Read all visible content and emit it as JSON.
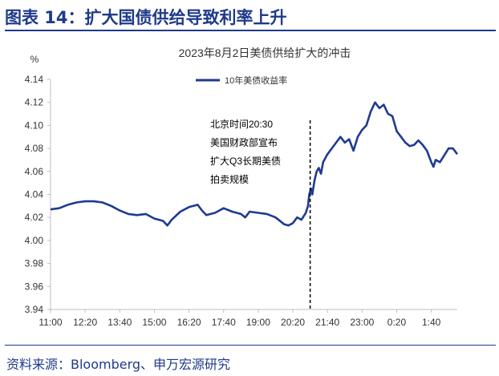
{
  "header": {
    "figure_title": "图表 14：扩大国债供给导致利率上升"
  },
  "footer": {
    "source": "资料来源：Bloomberg、申万宏源研究"
  },
  "chart_data": {
    "type": "line",
    "title": "2023年8月2日美债供给扩大的冲击",
    "ylabel": "%",
    "xlabel": "",
    "ylim": [
      3.94,
      4.14
    ],
    "yticks": [
      "4.14",
      "4.12",
      "4.10",
      "4.08",
      "4.06",
      "4.04",
      "4.02",
      "4.00",
      "3.98",
      "3.96",
      "3.94"
    ],
    "x_tick_labels": [
      "11:00",
      "12:20",
      "13:40",
      "15:00",
      "16:20",
      "17:40",
      "19:00",
      "20:20",
      "21:40",
      "23:00",
      "0:20",
      "1:40"
    ],
    "x_start_minute": 660,
    "x_tick_step_minutes": 80,
    "x_end_minute": 1600,
    "legend_position": "top-center",
    "series": [
      {
        "name": "10年美债收益率",
        "color": "#1f3a93",
        "points": [
          [
            660,
            4.027
          ],
          [
            680,
            4.028
          ],
          [
            700,
            4.031
          ],
          [
            720,
            4.033
          ],
          [
            740,
            4.034
          ],
          [
            760,
            4.034
          ],
          [
            780,
            4.033
          ],
          [
            800,
            4.03
          ],
          [
            820,
            4.026
          ],
          [
            840,
            4.023
          ],
          [
            860,
            4.022
          ],
          [
            880,
            4.023
          ],
          [
            900,
            4.019
          ],
          [
            920,
            4.017
          ],
          [
            930,
            4.013
          ],
          [
            940,
            4.018
          ],
          [
            960,
            4.025
          ],
          [
            980,
            4.029
          ],
          [
            1000,
            4.031
          ],
          [
            1010,
            4.026
          ],
          [
            1020,
            4.022
          ],
          [
            1040,
            4.024
          ],
          [
            1060,
            4.028
          ],
          [
            1080,
            4.025
          ],
          [
            1100,
            4.023
          ],
          [
            1110,
            4.02
          ],
          [
            1120,
            4.025
          ],
          [
            1140,
            4.024
          ],
          [
            1160,
            4.023
          ],
          [
            1180,
            4.02
          ],
          [
            1200,
            4.014
          ],
          [
            1210,
            4.013
          ],
          [
            1220,
            4.015
          ],
          [
            1230,
            4.02
          ],
          [
            1240,
            4.018
          ],
          [
            1250,
            4.024
          ],
          [
            1255,
            4.03
          ],
          [
            1258,
            4.04
          ],
          [
            1262,
            4.045
          ],
          [
            1265,
            4.04
          ],
          [
            1270,
            4.052
          ],
          [
            1275,
            4.06
          ],
          [
            1280,
            4.063
          ],
          [
            1285,
            4.058
          ],
          [
            1290,
            4.068
          ],
          [
            1300,
            4.075
          ],
          [
            1310,
            4.08
          ],
          [
            1320,
            4.085
          ],
          [
            1330,
            4.09
          ],
          [
            1340,
            4.085
          ],
          [
            1350,
            4.088
          ],
          [
            1360,
            4.078
          ],
          [
            1370,
            4.09
          ],
          [
            1380,
            4.096
          ],
          [
            1390,
            4.1
          ],
          [
            1400,
            4.112
          ],
          [
            1410,
            4.12
          ],
          [
            1420,
            4.115
          ],
          [
            1430,
            4.118
          ],
          [
            1440,
            4.11
          ],
          [
            1450,
            4.108
          ],
          [
            1460,
            4.095
          ],
          [
            1470,
            4.09
          ],
          [
            1480,
            4.085
          ],
          [
            1490,
            4.082
          ],
          [
            1500,
            4.083
          ],
          [
            1510,
            4.087
          ],
          [
            1520,
            4.083
          ],
          [
            1530,
            4.078
          ],
          [
            1540,
            4.068
          ],
          [
            1545,
            4.064
          ],
          [
            1550,
            4.07
          ],
          [
            1560,
            4.068
          ],
          [
            1570,
            4.074
          ],
          [
            1580,
            4.08
          ],
          [
            1590,
            4.08
          ],
          [
            1600,
            4.075
          ]
        ]
      }
    ],
    "annotation": {
      "x_minute": 1260,
      "lines": [
        "北京时间20:30",
        "美国财政部宣布",
        "扩大Q3长期美债",
        "拍卖规模"
      ]
    }
  }
}
